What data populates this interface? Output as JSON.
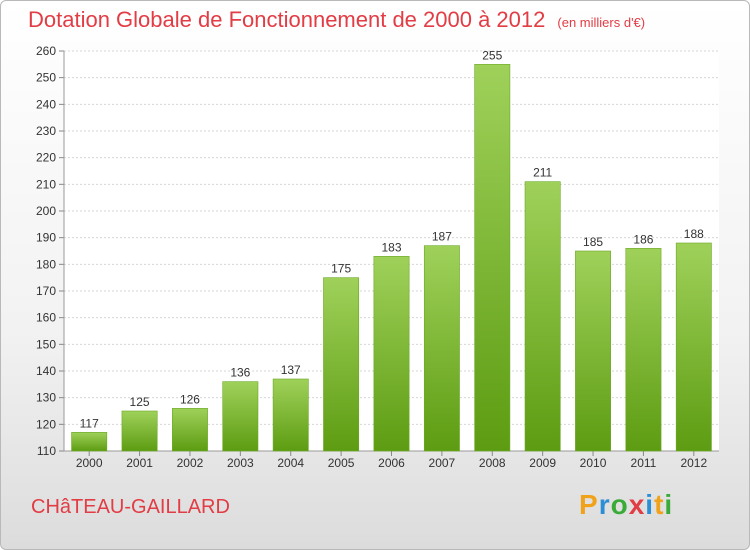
{
  "title": "Dotation Globale de Fonctionnement de 2000 à 2012",
  "unit": "(en milliers d'€)",
  "commune": "CHâTEAU-GAILLARD",
  "logo": {
    "letters": [
      "P",
      "r",
      "o",
      "x",
      "i",
      "t",
      "i"
    ],
    "colors": [
      "#f0a21b",
      "#2c8fd6",
      "#3aab38",
      "#e23c44",
      "#2c8fd6",
      "#f0a21b",
      "#3aab38"
    ]
  },
  "colors": {
    "accent": "#e23c44",
    "bar_top": "#9fd15a",
    "bar_bottom": "#5d9c12",
    "grid": "#d6d6d6",
    "label": "#333333"
  },
  "chart_data": {
    "type": "bar",
    "categories": [
      "2000",
      "2001",
      "2002",
      "2003",
      "2004",
      "2005",
      "2006",
      "2007",
      "2008",
      "2009",
      "2010",
      "2011",
      "2012"
    ],
    "values": [
      117,
      125,
      126,
      136,
      137,
      175,
      183,
      187,
      255,
      211,
      185,
      186,
      188
    ],
    "ylim": [
      110,
      260
    ],
    "yticks": [
      110,
      120,
      130,
      140,
      150,
      160,
      170,
      180,
      190,
      200,
      210,
      220,
      230,
      240,
      250,
      260
    ],
    "grid": true,
    "data_labels": true
  }
}
